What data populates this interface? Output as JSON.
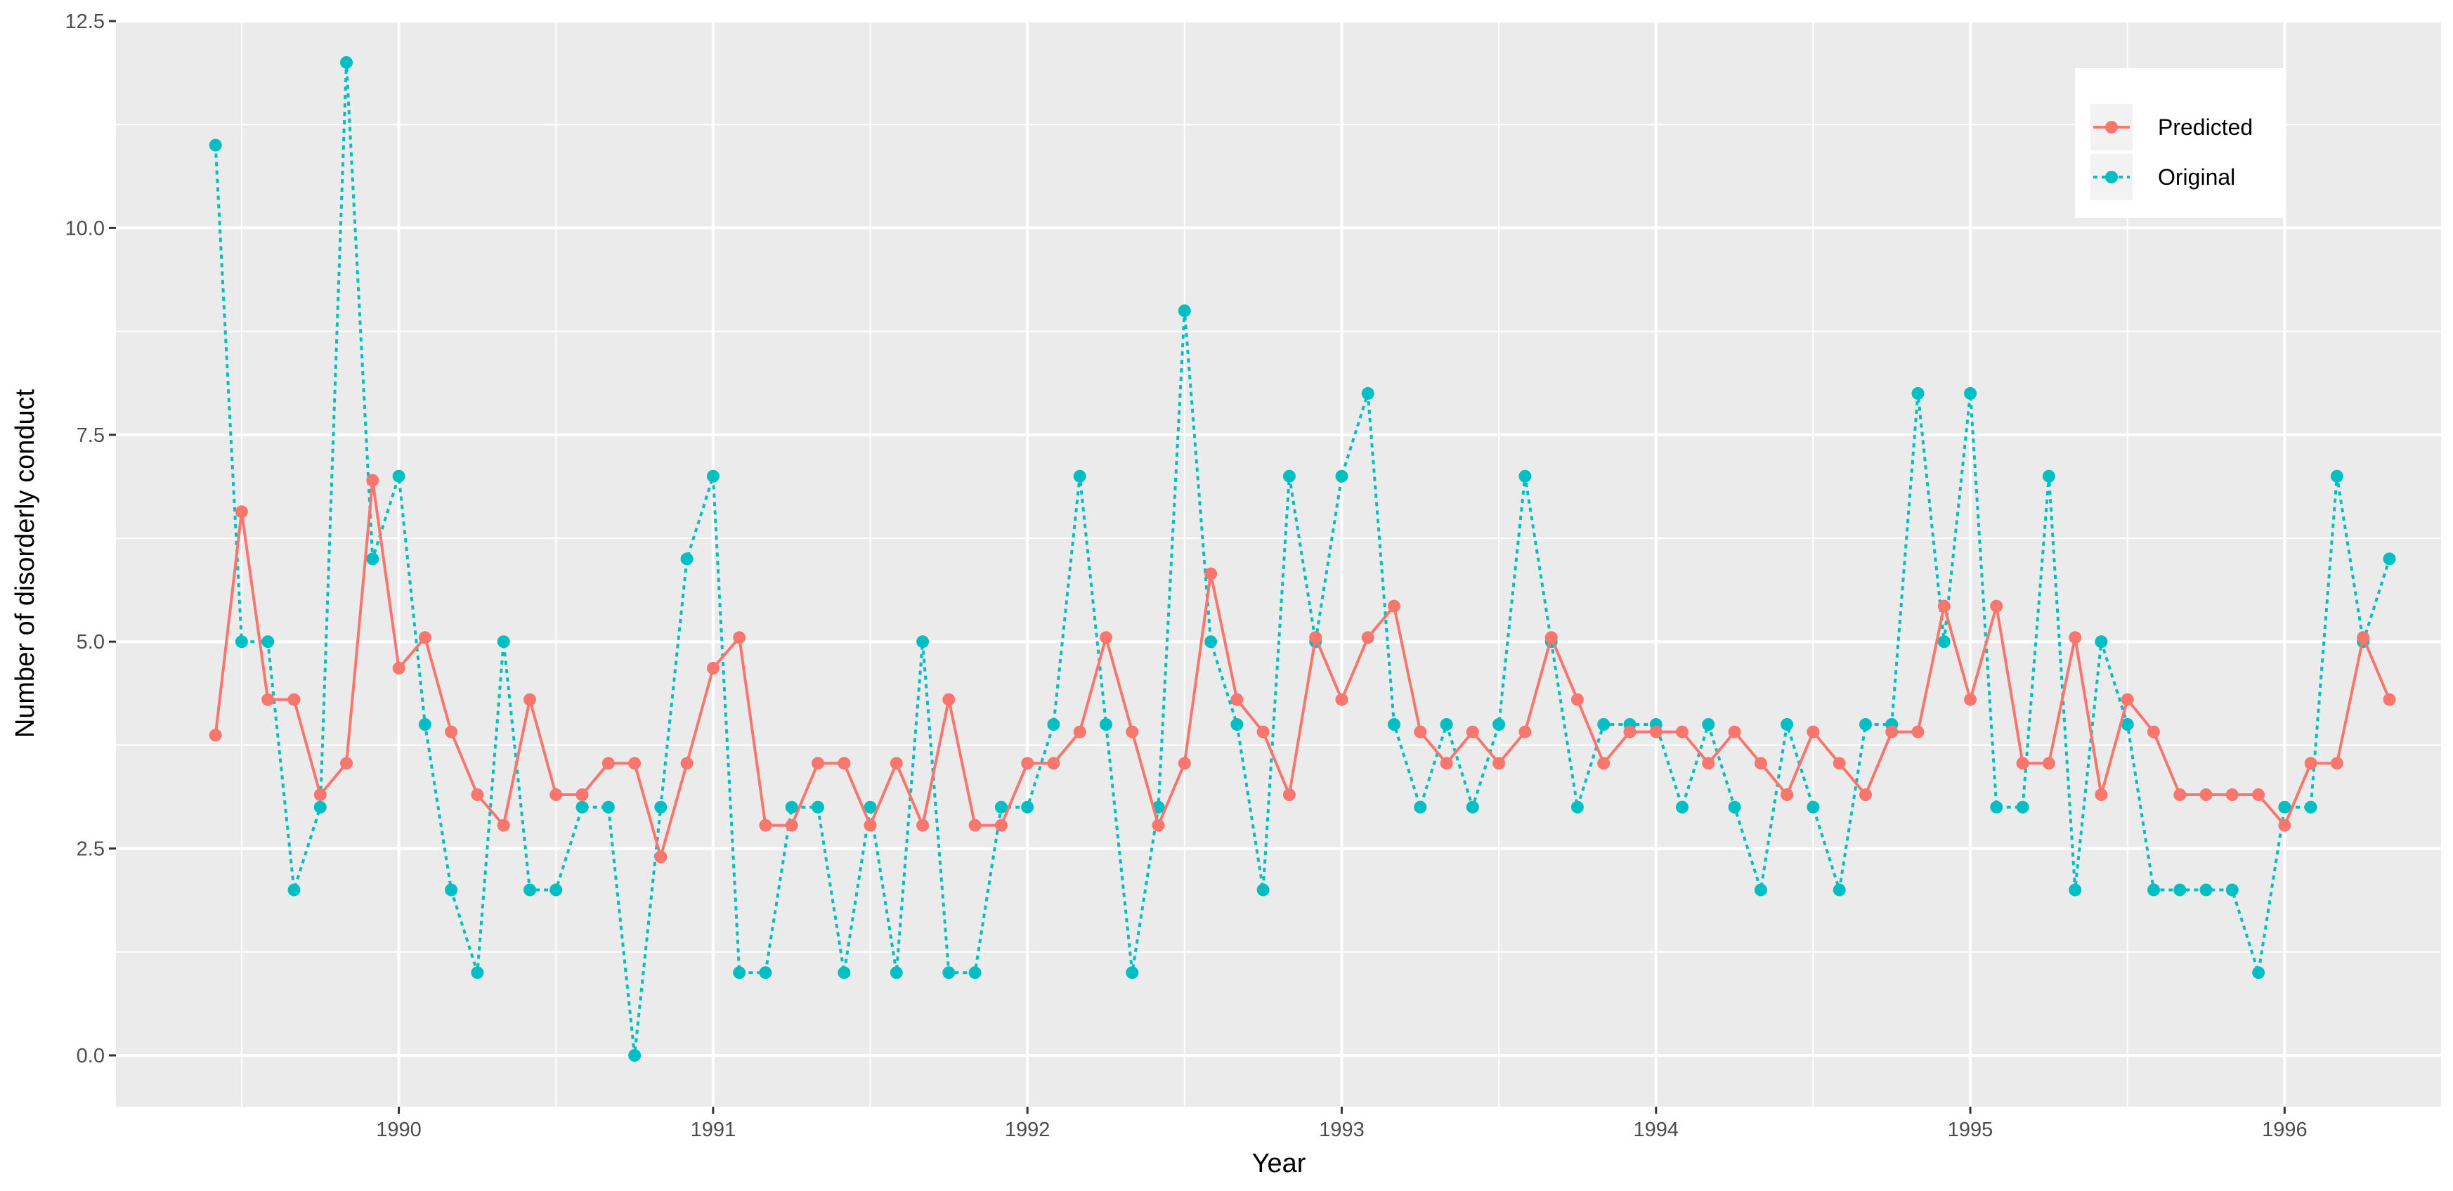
{
  "chart_data": {
    "type": "line",
    "title": "",
    "xlabel": "Year",
    "ylabel": "Number of  disorderly conduct",
    "xlim": [
      1989.1,
      1996.5
    ],
    "ylim": [
      -0.62,
      12.5
    ],
    "x_ticks": [
      1990,
      1991,
      1992,
      1993,
      1994,
      1995,
      1996
    ],
    "x_tick_labels": [
      "1990",
      "1991",
      "1992",
      "1993",
      "1994",
      "1995",
      "1996"
    ],
    "y_ticks": [
      0.0,
      2.5,
      5.0,
      7.5,
      10.0,
      12.5
    ],
    "y_tick_labels": [
      "0.0",
      "2.5",
      "5.0",
      "7.5",
      "10.0",
      "12.5"
    ],
    "grid": true,
    "legend_position": "top-right",
    "x_start": 1989.4167,
    "x_step": 0.083333,
    "series": [
      {
        "name": "Predicted",
        "color": "#F8766D",
        "line_style": "solid",
        "values": [
          3.87,
          6.57,
          4.3,
          4.3,
          3.15,
          3.53,
          6.95,
          4.68,
          5.05,
          3.91,
          3.15,
          2.78,
          4.3,
          3.15,
          3.15,
          3.53,
          3.53,
          2.4,
          3.53,
          4.68,
          5.05,
          2.78,
          2.78,
          3.53,
          3.53,
          2.78,
          3.53,
          2.78,
          4.3,
          2.78,
          2.78,
          3.53,
          3.53,
          3.91,
          5.05,
          3.91,
          2.78,
          3.53,
          5.82,
          4.3,
          3.91,
          3.15,
          5.05,
          4.3,
          5.05,
          5.43,
          3.91,
          3.53,
          3.91,
          3.53,
          3.91,
          5.05,
          4.3,
          3.53,
          3.91,
          3.91,
          3.91,
          3.53,
          3.91,
          3.53,
          3.15,
          3.91,
          3.53,
          3.15,
          3.91,
          3.91,
          5.43,
          4.3,
          5.43,
          3.53,
          3.53,
          5.05,
          3.15,
          4.3,
          3.91,
          3.15,
          3.15,
          3.15,
          3.15,
          2.78,
          3.53,
          3.53,
          5.05,
          4.3
        ]
      },
      {
        "name": "Original",
        "color": "#00BFC4",
        "line_style": "dotted",
        "values": [
          11,
          5,
          5,
          2,
          3,
          12,
          6,
          7,
          4,
          2,
          1,
          5,
          2,
          2,
          3,
          3,
          0,
          3,
          6,
          7,
          1,
          1,
          3,
          3,
          1,
          3,
          1,
          5,
          1,
          1,
          3,
          3,
          4,
          7,
          4,
          1,
          3,
          9,
          5,
          4,
          2,
          7,
          5,
          7,
          8,
          4,
          3,
          4,
          3,
          4,
          7,
          5,
          3,
          4,
          4,
          4,
          3,
          4,
          3,
          2,
          4,
          3,
          2,
          4,
          4,
          8,
          5,
          8,
          3,
          3,
          7,
          2,
          5,
          4,
          2,
          2,
          2,
          2,
          1,
          3,
          3,
          7,
          5,
          6
        ]
      }
    ]
  }
}
